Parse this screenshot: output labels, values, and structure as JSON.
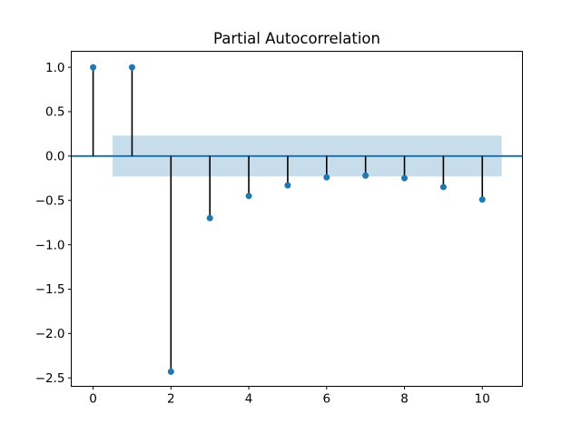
{
  "figure": {
    "title": "Partial Autocorrelation"
  },
  "chart_data": {
    "type": "stem",
    "title": "Partial Autocorrelation",
    "xlabel": "",
    "ylabel": "",
    "x": [
      0,
      1,
      2,
      3,
      4,
      5,
      6,
      7,
      8,
      9,
      10
    ],
    "values": [
      1.0,
      1.0,
      -2.43,
      -0.7,
      -0.45,
      -0.33,
      -0.24,
      -0.22,
      -0.25,
      -0.35,
      -0.49
    ],
    "confidence_band": {
      "x_start": 0.5,
      "x_end": 10.5,
      "upper": 0.23,
      "lower": -0.23
    },
    "zero_line_y": 0,
    "xlim": [
      -0.55,
      11.02
    ],
    "ylim": [
      -2.59,
      1.175
    ],
    "x_ticks": [
      0,
      2,
      4,
      6,
      8,
      10
    ],
    "x_tick_labels": [
      "0",
      "2",
      "4",
      "6",
      "8",
      "10"
    ],
    "y_ticks": [
      1.0,
      0.5,
      0.0,
      -0.5,
      -1.0,
      -1.5,
      -2.0,
      -2.5
    ],
    "y_tick_labels": [
      "1.0",
      "0.5",
      "0.0",
      "−0.5",
      "−1.0",
      "−1.5",
      "−2.0",
      "−2.5"
    ],
    "grid": false,
    "legend": null,
    "colors": {
      "marker": "#1f77b4",
      "stem": "#000000",
      "zero_line": "#1f77b4",
      "band": "rgba(31,119,180,0.25)",
      "spine": "#000000",
      "text": "#000000",
      "background": "#ffffff"
    }
  }
}
